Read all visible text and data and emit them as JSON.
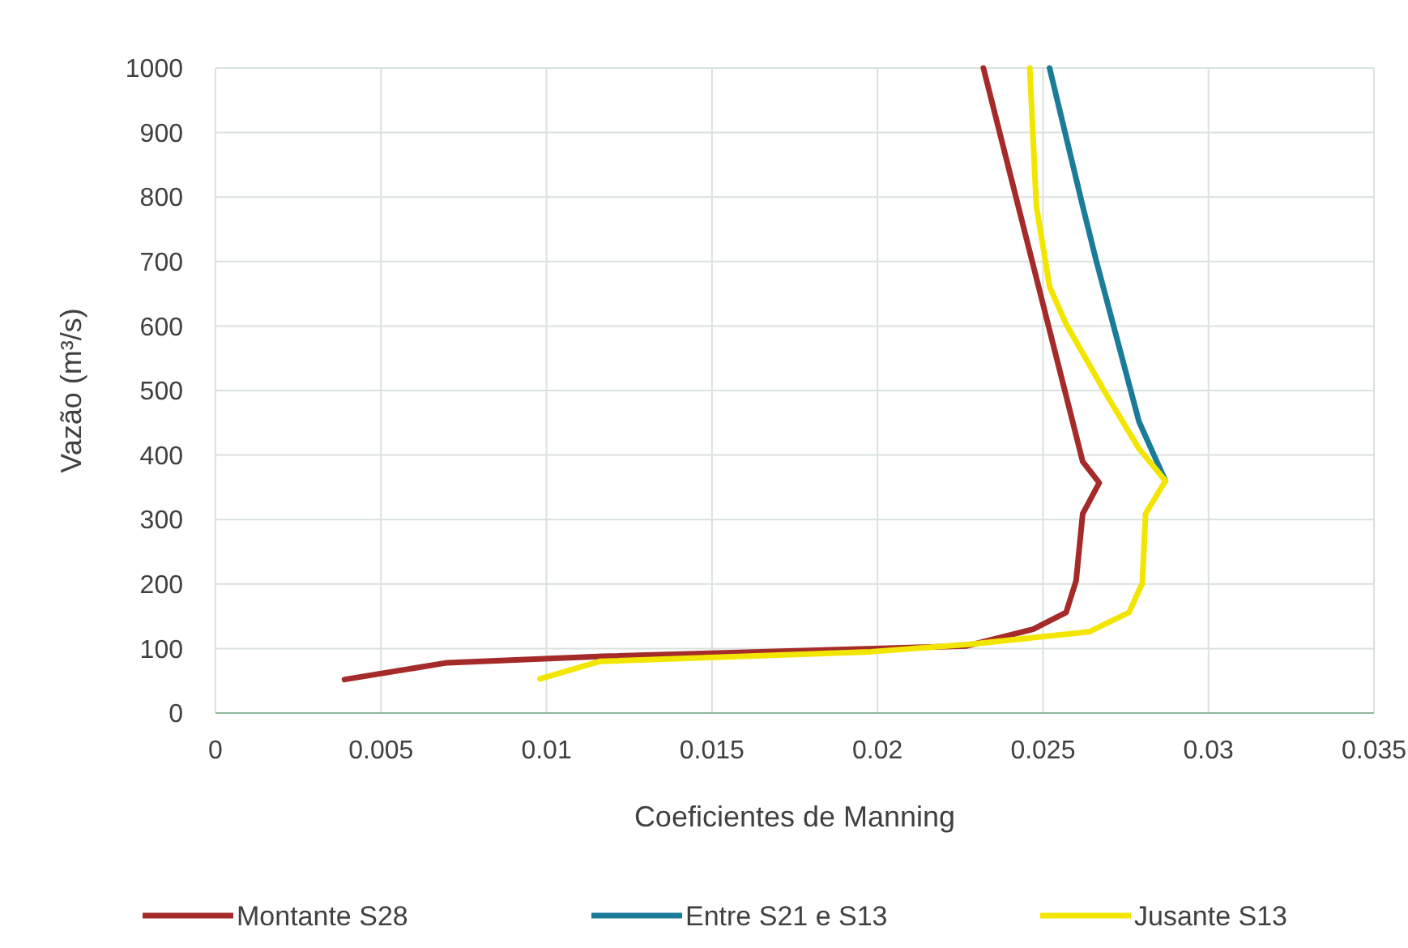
{
  "chart_data": {
    "type": "line",
    "xlabel": "Coeficientes de Manning",
    "ylabel": "Vazão (m³/s)",
    "xlim": [
      0,
      0.035
    ],
    "xticks": [
      0,
      0.005,
      0.01,
      0.015,
      0.02,
      0.025,
      0.03,
      0.035
    ],
    "ylim": [
      0,
      1000
    ],
    "yticks": [
      0,
      100,
      200,
      300,
      400,
      500,
      600,
      700,
      800,
      900,
      1000
    ],
    "grid": true,
    "legend": "bottom",
    "line_style": "solid",
    "marker": "none",
    "series": [
      {
        "name": "Montante S28",
        "color": "#a52a2a",
        "x": [
          0.0039,
          0.007,
          0.0117,
          0.0227,
          0.0247,
          0.0257,
          0.026,
          0.0262,
          0.0267,
          0.0262,
          0.0232
        ],
        "values": [
          52,
          78,
          88,
          104,
          130,
          156,
          205,
          309,
          357,
          390,
          1000
        ]
      },
      {
        "name": "Entre S21 e S13",
        "color": "#1b7c9a",
        "x": [
          0.0287,
          0.0279,
          0.0266,
          0.0262,
          0.0252
        ],
        "values": [
          360,
          452,
          703,
          786,
          1000
        ]
      },
      {
        "name": "Jusante S13",
        "color": "#f2e600",
        "x": [
          0.0098,
          0.0116,
          0.0198,
          0.0229,
          0.0264,
          0.0276,
          0.028,
          0.0281,
          0.0287,
          0.0279,
          0.0269,
          0.0257,
          0.0252,
          0.0248,
          0.0246
        ],
        "values": [
          53,
          80,
          95,
          107,
          126,
          156,
          201,
          309,
          360,
          410,
          495,
          603,
          661,
          786,
          1000
        ]
      }
    ]
  }
}
